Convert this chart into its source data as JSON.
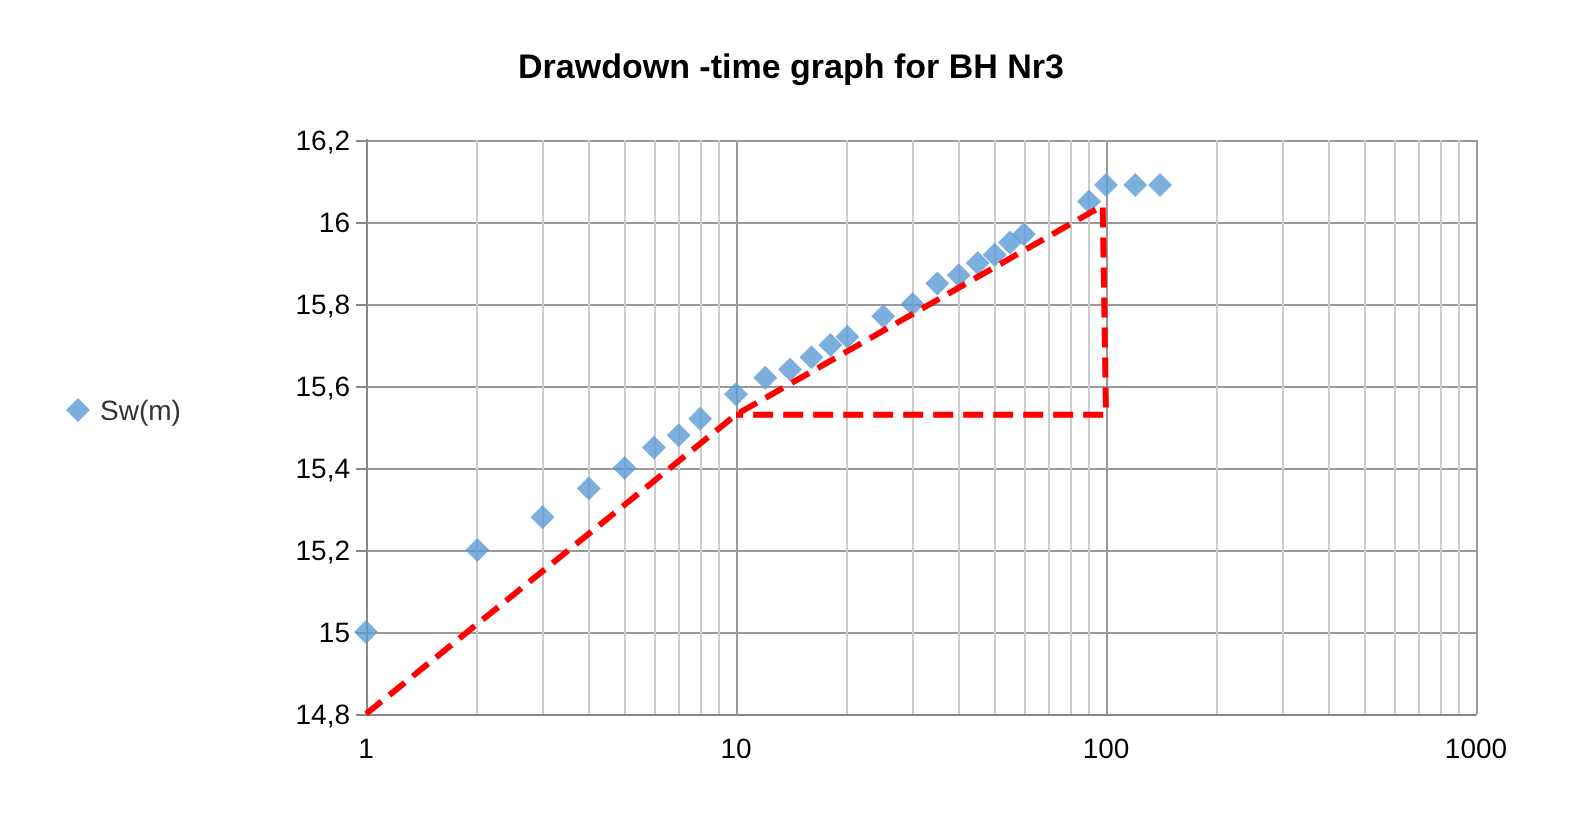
{
  "chart_data": {
    "type": "scatter",
    "title": "Drawdown -time graph for BH Nr3",
    "log": "x",
    "xlim": [
      1,
      1000
    ],
    "xticks": [
      1,
      10,
      100,
      1000
    ],
    "ylim": [
      14.8,
      16.2
    ],
    "yticks": [
      {
        "value": 14.8,
        "label": "14,8"
      },
      {
        "value": 15,
        "label": "15"
      },
      {
        "value": 15.2,
        "label": "15,2"
      },
      {
        "value": 15.4,
        "label": "15,4"
      },
      {
        "value": 15.6,
        "label": "15,6"
      },
      {
        "value": 15.8,
        "label": "15,8"
      },
      {
        "value": 16,
        "label": "16"
      },
      {
        "value": 16.2,
        "label": "16,2"
      }
    ],
    "grid": true,
    "legend": "left",
    "series": [
      {
        "name": "Sw(m)",
        "marker": "diamond",
        "color": "#5b9bd5",
        "x": [
          1,
          2,
          3,
          4,
          5,
          6,
          7,
          8,
          10,
          12,
          14,
          16,
          18,
          20,
          25,
          30,
          35,
          40,
          45,
          50,
          55,
          60,
          90,
          100,
          120,
          140
        ],
        "values": [
          15.0,
          15.2,
          15.28,
          15.35,
          15.4,
          15.45,
          15.48,
          15.52,
          15.58,
          15.62,
          15.64,
          15.67,
          15.7,
          15.72,
          15.77,
          15.8,
          15.85,
          15.87,
          15.9,
          15.92,
          15.95,
          15.97,
          16.05,
          16.09,
          16.09,
          16.09
        ]
      },
      {
        "type": "line",
        "marker": "none",
        "line_style": "dashed",
        "color": "#ff0000",
        "x": [
          1,
          10,
          98,
          100,
          10
        ],
        "values": [
          14.8,
          15.53,
          16.04,
          15.53,
          15.53
        ]
      }
    ]
  }
}
